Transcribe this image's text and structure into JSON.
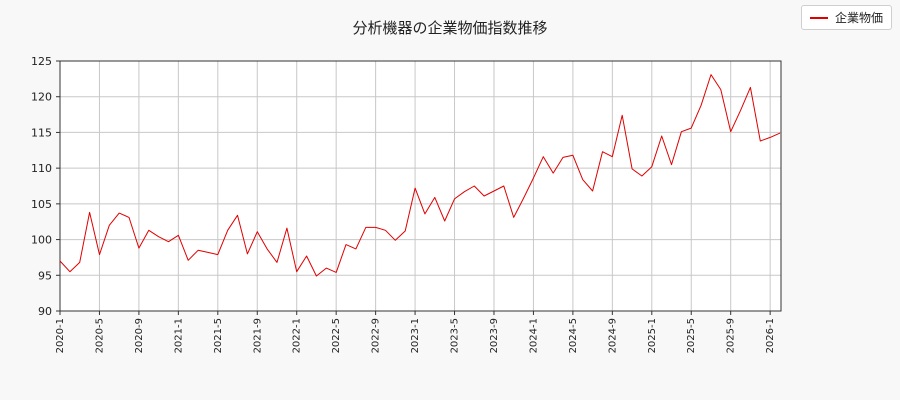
{
  "colors": {
    "series": "#e00000",
    "grid": "#c8c8c8",
    "background": "#f8f8f8"
  },
  "legend": {
    "placement": "top-right"
  },
  "chart_data": {
    "type": "line",
    "title": "分析機器の企業物価指数推移",
    "xlabel": "",
    "ylabel": "",
    "ylim": [
      90,
      125
    ],
    "yticks": [
      90,
      95,
      100,
      105,
      110,
      115,
      120,
      125
    ],
    "xticks": [
      "2020-1",
      "2020-5",
      "2020-9",
      "2021-1",
      "2021-5",
      "2021-9",
      "2022-1",
      "2022-5",
      "2022-9",
      "2023-1",
      "2023-5",
      "2023-9",
      "2024-1",
      "2024-5",
      "2024-9",
      "2025-1",
      "2025-5",
      "2025-9",
      "2026-1"
    ],
    "grid": true,
    "series": [
      {
        "name": "企業物価",
        "x": [
          "2020-1",
          "2020-2",
          "2020-3",
          "2020-4",
          "2020-5",
          "2020-6",
          "2020-7",
          "2020-8",
          "2020-9",
          "2020-10",
          "2020-11",
          "2020-12",
          "2021-1",
          "2021-2",
          "2021-3",
          "2021-4",
          "2021-5",
          "2021-6",
          "2021-7",
          "2021-8",
          "2021-9",
          "2021-10",
          "2021-11",
          "2021-12",
          "2022-1",
          "2022-2",
          "2022-3",
          "2022-4",
          "2022-5",
          "2022-6",
          "2022-7",
          "2022-8",
          "2022-9",
          "2022-10",
          "2022-11",
          "2022-12",
          "2023-1",
          "2023-2",
          "2023-3",
          "2023-4",
          "2023-5",
          "2023-6",
          "2023-7",
          "2023-8",
          "2023-9",
          "2023-10",
          "2023-11",
          "2023-12",
          "2024-1",
          "2024-2",
          "2024-3",
          "2024-4",
          "2024-5",
          "2024-6",
          "2024-7",
          "2024-8",
          "2024-9",
          "2024-10",
          "2024-11",
          "2024-12",
          "2025-1",
          "2025-2",
          "2025-3",
          "2025-4",
          "2025-5",
          "2025-6",
          "2025-7",
          "2025-8",
          "2025-9",
          "2025-10",
          "2025-11",
          "2025-12",
          "2026-1",
          "2026-2"
        ],
        "values": [
          97.0,
          95.5,
          96.8,
          103.8,
          97.9,
          102.0,
          103.7,
          103.1,
          98.8,
          101.3,
          100.4,
          99.7,
          100.6,
          97.1,
          98.5,
          98.2,
          97.9,
          101.3,
          103.4,
          98.0,
          101.1,
          98.7,
          96.8,
          101.6,
          95.5,
          97.7,
          94.9,
          96.0,
          95.4,
          99.3,
          98.7,
          101.7,
          101.7,
          101.3,
          99.9,
          101.2,
          107.2,
          103.6,
          105.9,
          102.6,
          105.7,
          106.7,
          107.5,
          106.1,
          106.8,
          107.5,
          103.1,
          105.8,
          108.6,
          111.6,
          109.3,
          111.5,
          111.8,
          108.4,
          106.8,
          112.3,
          111.6,
          117.4,
          109.9,
          108.9,
          110.2,
          114.5,
          110.5,
          115.1,
          115.6,
          118.8,
          123.1,
          121.0,
          115.1,
          118.1,
          121.3,
          113.8,
          114.3,
          114.9
        ]
      }
    ]
  }
}
